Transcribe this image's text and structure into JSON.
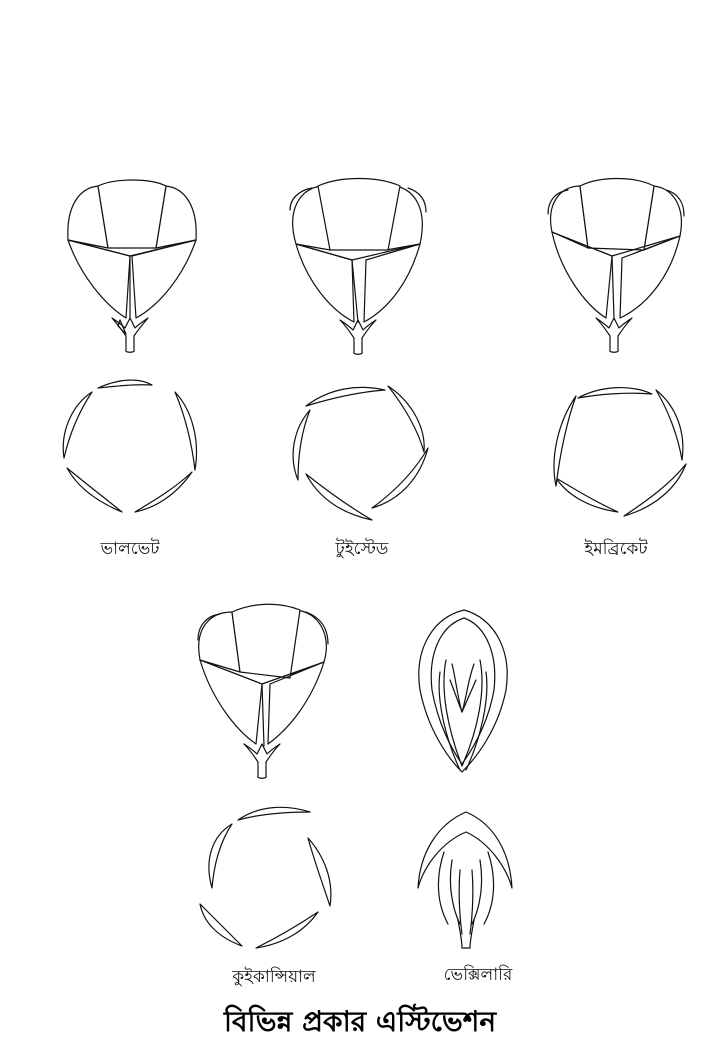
{
  "figure": {
    "title": "বিভিন্ন প্রকার এস্টিভেশন",
    "types": [
      {
        "id": "valvate",
        "label": "ভালভেট"
      },
      {
        "id": "twisted",
        "label": "টুইস্টেড"
      },
      {
        "id": "imbricate",
        "label": "ইমব্রিকেট"
      },
      {
        "id": "quincuncial",
        "label": "কুইকান্সিয়াল"
      },
      {
        "id": "vexillary",
        "label": "ভেক্সিলারি"
      }
    ]
  }
}
